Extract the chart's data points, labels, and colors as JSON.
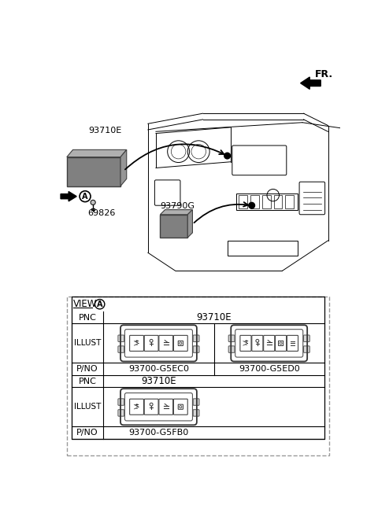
{
  "bg_color": "#ffffff",
  "fr_label": "FR.",
  "view_label": "VIEW",
  "part_93710E": "93710E",
  "part_93790G": "93790G",
  "part_69826": "69826",
  "pnc_label": "PNC",
  "illust_label": "ILLUST",
  "pno_label": "P/NO",
  "pnc_value1": "93710E",
  "pnc_value2": "93710E",
  "pno_value1": "93700-G5EC0",
  "pno_value2": "93700-G5ED0",
  "pno_value3": "93700-G5FB0"
}
